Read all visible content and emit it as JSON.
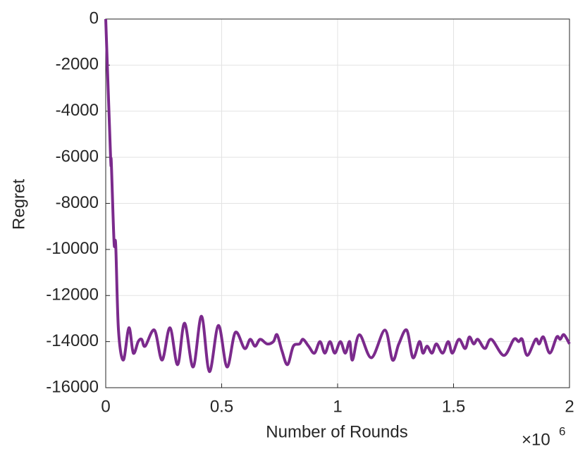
{
  "chart_data": {
    "type": "line",
    "xlabel": "Number of Rounds",
    "ylabel": "Regret",
    "x_multiplier": "×10",
    "x_multiplier_exponent": "6",
    "xlim": [
      0,
      2
    ],
    "xticks": [
      0,
      0.5,
      1,
      1.5,
      2
    ],
    "ylim": [
      -16000,
      0
    ],
    "yticks": [
      0,
      -2000,
      -4000,
      -6000,
      -8000,
      -10000,
      -12000,
      -14000,
      -16000
    ],
    "grid": true,
    "series": [
      {
        "color": "#7b2a8c",
        "x": [
          0,
          0.021,
          0.024,
          0.036,
          0.043,
          0.055,
          0.076,
          0.1,
          0.119,
          0.14,
          0.155,
          0.17,
          0.21,
          0.243,
          0.277,
          0.31,
          0.34,
          0.377,
          0.413,
          0.447,
          0.486,
          0.523,
          0.559,
          0.599,
          0.623,
          0.644,
          0.666,
          0.696,
          0.723,
          0.739,
          0.76,
          0.784,
          0.809,
          0.836,
          0.851,
          0.875,
          0.9,
          0.924,
          0.945,
          0.967,
          0.988,
          1.012,
          1.033,
          1.052,
          1.064,
          1.094,
          1.146,
          1.204,
          1.237,
          1.264,
          1.298,
          1.325,
          1.353,
          1.368,
          1.386,
          1.407,
          1.426,
          1.453,
          1.477,
          1.495,
          1.523,
          1.55,
          1.568,
          1.587,
          1.605,
          1.635,
          1.663,
          1.717,
          1.76,
          1.781,
          1.796,
          1.818,
          1.854,
          1.869,
          1.888,
          1.915,
          1.945,
          1.96,
          1.976,
          2
        ],
        "values": [
          0,
          -6000,
          -6200,
          -9700,
          -9800,
          -13500,
          -14800,
          -13400,
          -14500,
          -14000,
          -13900,
          -14200,
          -13500,
          -14800,
          -13400,
          -15000,
          -13200,
          -15100,
          -12900,
          -15300,
          -13300,
          -15100,
          -13600,
          -14300,
          -13900,
          -14200,
          -13900,
          -14100,
          -14000,
          -13700,
          -14400,
          -15000,
          -14200,
          -14100,
          -13900,
          -14200,
          -14500,
          -14000,
          -14500,
          -14000,
          -14500,
          -14000,
          -14500,
          -14000,
          -14800,
          -13700,
          -14700,
          -13500,
          -14800,
          -14100,
          -13500,
          -14700,
          -14000,
          -14500,
          -14200,
          -14500,
          -14100,
          -14500,
          -14000,
          -14500,
          -13900,
          -14300,
          -13800,
          -14100,
          -13900,
          -14300,
          -13900,
          -14600,
          -13900,
          -14000,
          -13900,
          -14600,
          -13900,
          -14100,
          -13800,
          -14500,
          -13800,
          -13900,
          -13700,
          -14100
        ]
      }
    ]
  }
}
